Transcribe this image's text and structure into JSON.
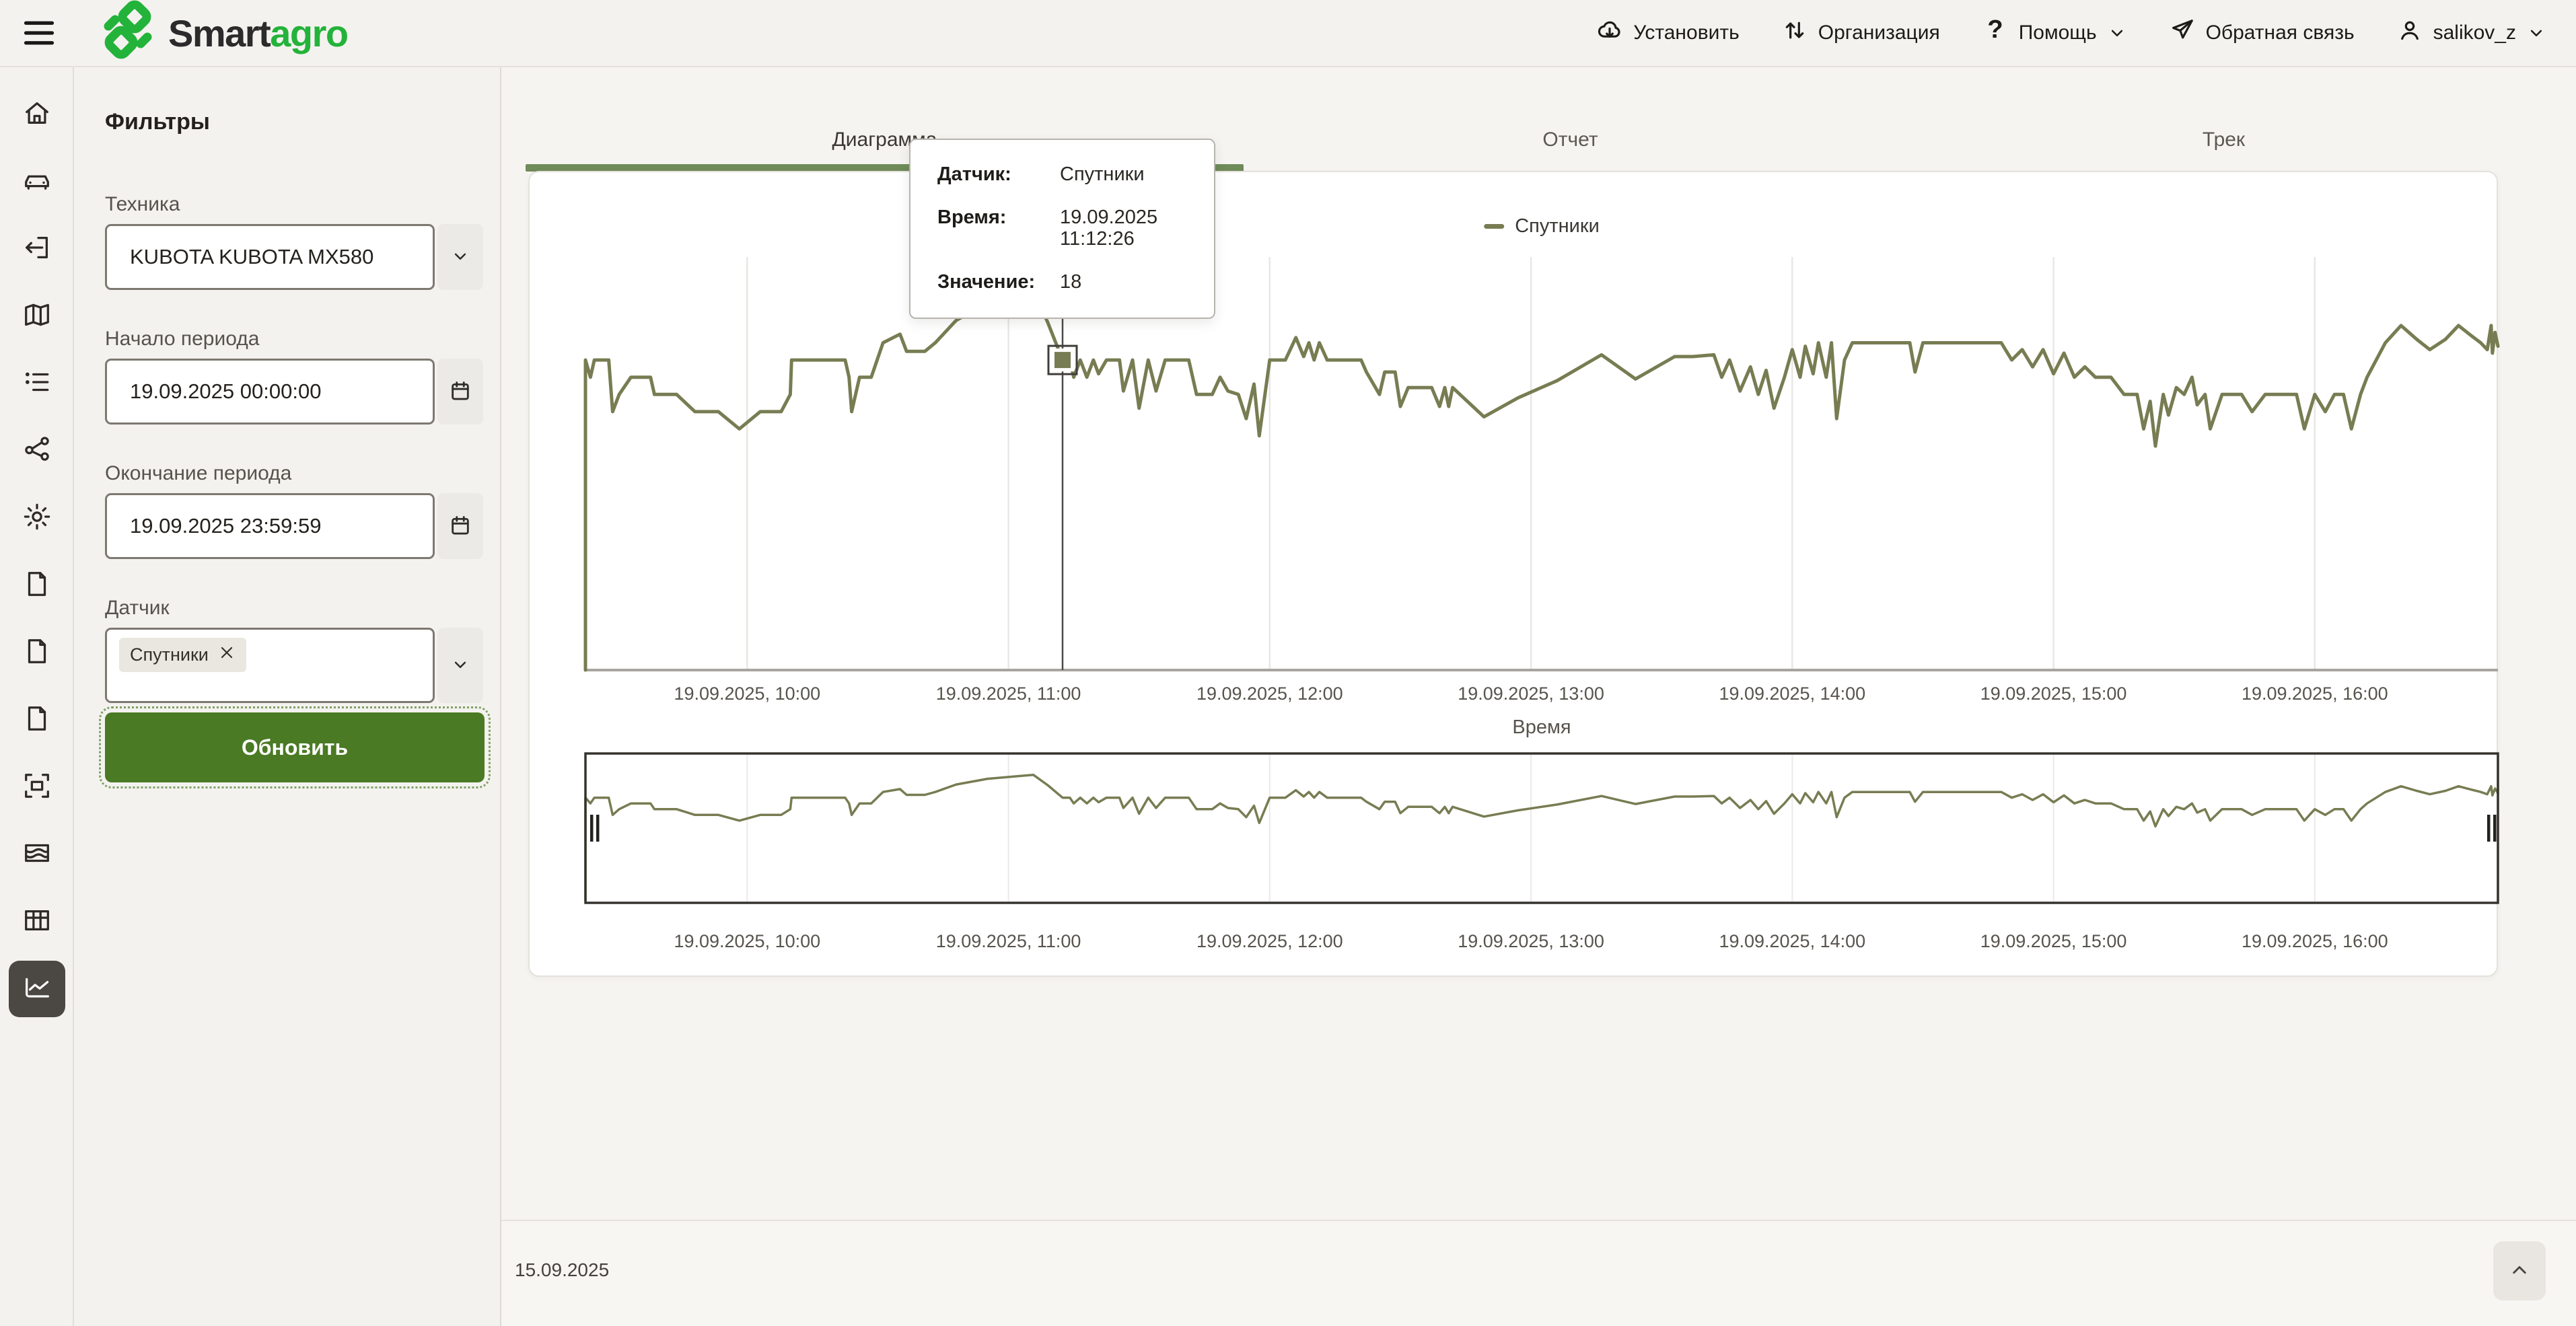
{
  "theme": {
    "accent_green": "#4a7a23",
    "tab_underline": "#6f8b59",
    "line_color": "#787c52",
    "brand_green": "#23b33a"
  },
  "header": {
    "brand": {
      "name_primary": "Smart",
      "name_secondary": "agro"
    },
    "nav": [
      {
        "id": "install",
        "icon": "cloud-download-icon",
        "label": "Установить",
        "chevron": false
      },
      {
        "id": "organization",
        "icon": "swap-arrows-icon",
        "label": "Организация",
        "chevron": false
      },
      {
        "id": "help",
        "icon": "question-icon",
        "label": "Помощь",
        "chevron": true
      },
      {
        "id": "feedback",
        "icon": "paper-plane-icon",
        "label": "Обратная связь",
        "chevron": false
      },
      {
        "id": "user",
        "icon": "user-icon",
        "label": "salikov_z",
        "chevron": true
      }
    ]
  },
  "sidebar": {
    "items": [
      {
        "icon": "home-icon",
        "active": false
      },
      {
        "icon": "vehicle-icon",
        "active": false
      },
      {
        "icon": "import-icon",
        "active": false
      },
      {
        "icon": "map-icon",
        "active": false
      },
      {
        "icon": "list-icon",
        "active": false
      },
      {
        "icon": "share-icon",
        "active": false
      },
      {
        "icon": "settings-icon",
        "active": false
      },
      {
        "icon": "document-icon",
        "active": false
      },
      {
        "icon": "document-icon",
        "active": false
      },
      {
        "icon": "document-icon",
        "active": false
      },
      {
        "icon": "field-select-icon",
        "active": false
      },
      {
        "icon": "terrain-icon",
        "active": false
      },
      {
        "icon": "table-icon",
        "active": false
      },
      {
        "icon": "line-chart-icon",
        "active": true
      }
    ]
  },
  "filters": {
    "title": "Фильтры",
    "technic": {
      "label": "Техника",
      "value": "KUBOTA KUBOTA MX580"
    },
    "period_start": {
      "label": "Начало периода",
      "value": "19.09.2025 00:00:00"
    },
    "period_end": {
      "label": "Окончание периода",
      "value": "19.09.2025 23:59:59"
    },
    "sensor": {
      "label": "Датчик",
      "tag": "Спутники"
    },
    "submit_label": "Обновить"
  },
  "tabs": [
    {
      "label": "Диаграмма",
      "active": true
    },
    {
      "label": "Отчет",
      "active": false
    },
    {
      "label": "Трек",
      "active": false
    }
  ],
  "legend": {
    "label": "Спутники",
    "color": "#787c52"
  },
  "tooltip": {
    "rows": [
      {
        "label": "Датчик:",
        "value": "Спутники"
      },
      {
        "label": "Время:",
        "value": "19.09.2025 11:12:26"
      },
      {
        "label": "Значение:",
        "value": "18"
      }
    ]
  },
  "footer": {
    "date": "15.09.2025"
  },
  "chart_data": {
    "type": "line",
    "title": "",
    "xlabel": "Время",
    "legend_position": "top",
    "grid": true,
    "x_domain": [
      9.381,
      16.701
    ],
    "main_y_domain": [
      0,
      28.9
    ],
    "overview_y_domain": [
      0,
      25.6
    ],
    "x_ticks": [
      {
        "t": 10,
        "label": "19.09.2025, 10:00"
      },
      {
        "t": 11,
        "label": "19.09.2025, 11:00"
      },
      {
        "t": 12,
        "label": "19.09.2025, 12:00"
      },
      {
        "t": 13,
        "label": "19.09.2025, 13:00"
      },
      {
        "t": 14,
        "label": "19.09.2025, 14:00"
      },
      {
        "t": 15,
        "label": "19.09.2025, 15:00"
      },
      {
        "t": 16,
        "label": "19.09.2025, 16:00"
      }
    ],
    "crosshair": {
      "t": 11.2072,
      "value": 18,
      "time_label": "19.09.2025 11:12:26"
    },
    "series": [
      {
        "name": "Спутники",
        "color": "#787c52",
        "points": [
          [
            9.381,
            0
          ],
          [
            9.381,
            18
          ],
          [
            9.4,
            17
          ],
          [
            9.415,
            18
          ],
          [
            9.47,
            18
          ],
          [
            9.485,
            15
          ],
          [
            9.51,
            16
          ],
          [
            9.555,
            17
          ],
          [
            9.63,
            17
          ],
          [
            9.645,
            16
          ],
          [
            9.73,
            16
          ],
          [
            9.8,
            15
          ],
          [
            9.89,
            15
          ],
          [
            9.97,
            14
          ],
          [
            10.05,
            15
          ],
          [
            10.13,
            15
          ],
          [
            10.165,
            16
          ],
          [
            10.17,
            18
          ],
          [
            10.375,
            18
          ],
          [
            10.39,
            17
          ],
          [
            10.4,
            15
          ],
          [
            10.43,
            17
          ],
          [
            10.475,
            17
          ],
          [
            10.52,
            19
          ],
          [
            10.585,
            19.5
          ],
          [
            10.61,
            18.5
          ],
          [
            10.68,
            18.5
          ],
          [
            10.72,
            19
          ],
          [
            10.8,
            20.3
          ],
          [
            10.92,
            21.3
          ],
          [
            11.095,
            22
          ],
          [
            11.15,
            20.2
          ],
          [
            11.2072,
            18
          ],
          [
            11.235,
            18
          ],
          [
            11.25,
            17
          ],
          [
            11.275,
            18
          ],
          [
            11.3,
            17
          ],
          [
            11.325,
            18
          ],
          [
            11.345,
            17.2
          ],
          [
            11.375,
            18
          ],
          [
            11.425,
            18
          ],
          [
            11.44,
            16.2
          ],
          [
            11.475,
            18
          ],
          [
            11.5,
            15.2
          ],
          [
            11.535,
            18
          ],
          [
            11.565,
            16.2
          ],
          [
            11.6,
            18
          ],
          [
            11.69,
            18
          ],
          [
            11.72,
            16
          ],
          [
            11.78,
            16
          ],
          [
            11.81,
            17
          ],
          [
            11.84,
            16.2
          ],
          [
            11.88,
            16
          ],
          [
            11.91,
            14.6
          ],
          [
            11.94,
            16.6
          ],
          [
            11.96,
            13.6
          ],
          [
            12.0,
            18
          ],
          [
            12.06,
            18
          ],
          [
            12.1,
            19.3
          ],
          [
            12.13,
            18.2
          ],
          [
            12.15,
            19
          ],
          [
            12.17,
            18
          ],
          [
            12.19,
            19
          ],
          [
            12.22,
            18
          ],
          [
            12.35,
            18
          ],
          [
            12.37,
            17.3
          ],
          [
            12.42,
            16
          ],
          [
            12.44,
            17.3
          ],
          [
            12.48,
            17.3
          ],
          [
            12.5,
            15.3
          ],
          [
            12.53,
            16.4
          ],
          [
            12.62,
            16.4
          ],
          [
            12.65,
            15.3
          ],
          [
            12.67,
            16.4
          ],
          [
            12.685,
            15.3
          ],
          [
            12.7,
            16.4
          ],
          [
            12.82,
            14.7
          ],
          [
            12.95,
            15.8
          ],
          [
            13.1,
            16.8
          ],
          [
            13.27,
            18.3
          ],
          [
            13.4,
            16.9
          ],
          [
            13.55,
            18.2
          ],
          [
            13.62,
            18.2
          ],
          [
            13.7,
            18.3
          ],
          [
            13.73,
            17
          ],
          [
            13.76,
            18
          ],
          [
            13.8,
            16.2
          ],
          [
            13.84,
            17.6
          ],
          [
            13.87,
            16
          ],
          [
            13.9,
            17.4
          ],
          [
            13.93,
            15.2
          ],
          [
            13.97,
            17
          ],
          [
            14.0,
            18.6
          ],
          [
            14.03,
            17
          ],
          [
            14.05,
            18.8
          ],
          [
            14.08,
            17.2
          ],
          [
            14.1,
            19
          ],
          [
            14.13,
            17
          ],
          [
            14.15,
            19
          ],
          [
            14.17,
            14.6
          ],
          [
            14.2,
            18
          ],
          [
            14.23,
            19
          ],
          [
            14.45,
            19
          ],
          [
            14.47,
            17.3
          ],
          [
            14.5,
            19
          ],
          [
            14.8,
            19
          ],
          [
            14.84,
            18
          ],
          [
            14.88,
            18.6
          ],
          [
            14.92,
            17.6
          ],
          [
            14.96,
            18.6
          ],
          [
            15.0,
            17.2
          ],
          [
            15.04,
            18.4
          ],
          [
            15.08,
            17
          ],
          [
            15.12,
            17.6
          ],
          [
            15.16,
            17
          ],
          [
            15.22,
            17
          ],
          [
            15.27,
            16
          ],
          [
            15.32,
            16
          ],
          [
            15.345,
            14
          ],
          [
            15.37,
            15.6
          ],
          [
            15.39,
            13
          ],
          [
            15.42,
            16
          ],
          [
            15.44,
            14.8
          ],
          [
            15.47,
            16.4
          ],
          [
            15.5,
            16
          ],
          [
            15.53,
            17
          ],
          [
            15.55,
            15.4
          ],
          [
            15.58,
            16
          ],
          [
            15.6,
            14
          ],
          [
            15.645,
            16
          ],
          [
            15.72,
            16
          ],
          [
            15.76,
            15
          ],
          [
            15.81,
            16
          ],
          [
            15.93,
            16
          ],
          [
            15.96,
            14
          ],
          [
            16.0,
            16
          ],
          [
            16.04,
            15
          ],
          [
            16.075,
            16
          ],
          [
            16.11,
            16
          ],
          [
            16.14,
            14
          ],
          [
            16.175,
            16
          ],
          [
            16.2,
            17
          ],
          [
            16.27,
            19
          ],
          [
            16.33,
            20
          ],
          [
            16.39,
            19.2
          ],
          [
            16.44,
            18.6
          ],
          [
            16.5,
            19.2
          ],
          [
            16.55,
            20
          ],
          [
            16.6,
            19.4
          ],
          [
            16.635,
            19
          ],
          [
            16.66,
            18.6
          ],
          [
            16.675,
            20
          ],
          [
            16.68,
            18.4
          ],
          [
            16.69,
            19.6
          ],
          [
            16.701,
            18.8
          ]
        ]
      }
    ]
  }
}
